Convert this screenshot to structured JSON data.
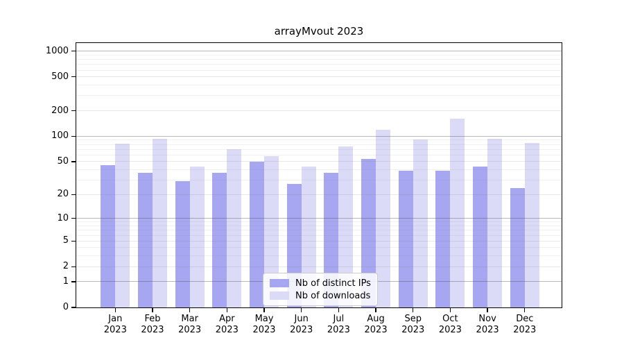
{
  "chart": {
    "title": "arrayMvout 2023"
  },
  "chart_data": {
    "type": "bar",
    "title": "arrayMvout 2023",
    "categories": [
      "Jan 2023",
      "Feb 2023",
      "Mar 2023",
      "Apr 2023",
      "May 2023",
      "Jun 2023",
      "Jul 2023",
      "Aug 2023",
      "Sep 2023",
      "Oct 2023",
      "Nov 2023",
      "Dec 2023"
    ],
    "series": [
      {
        "name": "Nb of distinct IPs",
        "color": "#a6a6f1",
        "values": [
          45,
          37,
          29,
          37,
          50,
          27,
          37,
          54,
          39,
          39,
          44,
          24
        ]
      },
      {
        "name": "Nb of downloads",
        "color": "#dbdbf8",
        "values": [
          82,
          93,
          44,
          70,
          58,
          44,
          76,
          120,
          92,
          160,
          94,
          84
        ]
      }
    ],
    "xlabel": "",
    "ylabel": "",
    "yscale": "log1p",
    "ylim": [
      0,
      1270
    ],
    "yticks": [
      0,
      1,
      2,
      5,
      10,
      20,
      50,
      100,
      200,
      500,
      1000
    ],
    "grid": {
      "show": true,
      "decade_lines": [
        1,
        10,
        100,
        1000
      ],
      "labeled_minor_lines": [
        2,
        5,
        20,
        50,
        200,
        500
      ],
      "log_minor_lines": true
    },
    "legend": {
      "position": "lower center inside plot",
      "labels": [
        "Nb of distinct IPs",
        "Nb of downloads"
      ]
    }
  },
  "colors": {
    "bar_distinct_ips": "#a6a6f1",
    "bar_downloads": "#dbdbf8",
    "grid_major": "#c3c3c3",
    "grid_mid": "#e7e7e7",
    "grid_minor": "#f2f2f2",
    "spine": "#000000",
    "background": "#ffffff"
  }
}
